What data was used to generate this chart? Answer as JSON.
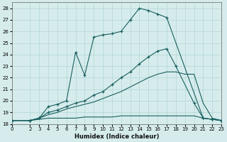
{
  "xlabel": "Humidex (Indice chaleur)",
  "bg_color": "#d6ecec",
  "grid_color": "#b8d8d8",
  "line_color": "#1a5f5f",
  "xlim": [
    0,
    23
  ],
  "ylim": [
    18,
    28.5
  ],
  "xticks": [
    0,
    2,
    3,
    4,
    5,
    6,
    7,
    8,
    9,
    10,
    11,
    12,
    13,
    14,
    15,
    16,
    17,
    18,
    19,
    20,
    21,
    22,
    23
  ],
  "yticks": [
    18,
    19,
    20,
    21,
    22,
    23,
    24,
    25,
    26,
    27,
    28
  ],
  "series": [
    {
      "x": [
        0,
        2,
        3,
        4,
        5,
        6,
        7,
        8,
        9,
        10,
        11,
        12,
        13,
        14,
        15,
        16,
        17,
        21,
        22,
        23
      ],
      "y": [
        18.3,
        18.3,
        18.5,
        19.5,
        19.7,
        20.0,
        24.2,
        22.2,
        25.5,
        25.7,
        25.8,
        26.0,
        27.0,
        28.0,
        27.8,
        27.5,
        27.2,
        18.5,
        18.4,
        18.3
      ],
      "marker": "+"
    },
    {
      "x": [
        0,
        2,
        3,
        4,
        5,
        6,
        7,
        8,
        9,
        10,
        11,
        12,
        13,
        14,
        15,
        16,
        17,
        18,
        20,
        21,
        22,
        23
      ],
      "y": [
        18.3,
        18.3,
        18.5,
        19.0,
        19.2,
        19.5,
        19.8,
        20.0,
        20.5,
        20.8,
        21.4,
        22.0,
        22.5,
        23.2,
        23.8,
        24.3,
        24.5,
        23.0,
        19.8,
        18.5,
        18.4,
        18.3
      ],
      "marker": "+"
    },
    {
      "x": [
        0,
        2,
        3,
        4,
        5,
        6,
        7,
        8,
        9,
        10,
        11,
        12,
        13,
        14,
        15,
        16,
        17,
        18,
        19,
        20,
        21,
        22,
        23
      ],
      "y": [
        18.3,
        18.3,
        18.5,
        18.8,
        19.0,
        19.3,
        19.5,
        19.7,
        19.9,
        20.2,
        20.5,
        20.8,
        21.2,
        21.6,
        22.0,
        22.3,
        22.5,
        22.5,
        22.3,
        22.3,
        19.8,
        18.5,
        18.3
      ],
      "marker": null
    },
    {
      "x": [
        0,
        2,
        3,
        4,
        5,
        6,
        7,
        8,
        9,
        10,
        11,
        12,
        13,
        14,
        15,
        16,
        17,
        18,
        19,
        20,
        21,
        22,
        23
      ],
      "y": [
        18.3,
        18.3,
        18.4,
        18.5,
        18.5,
        18.5,
        18.5,
        18.6,
        18.6,
        18.6,
        18.6,
        18.7,
        18.7,
        18.7,
        18.7,
        18.7,
        18.7,
        18.7,
        18.7,
        18.7,
        18.5,
        18.4,
        18.3
      ],
      "marker": null
    }
  ]
}
